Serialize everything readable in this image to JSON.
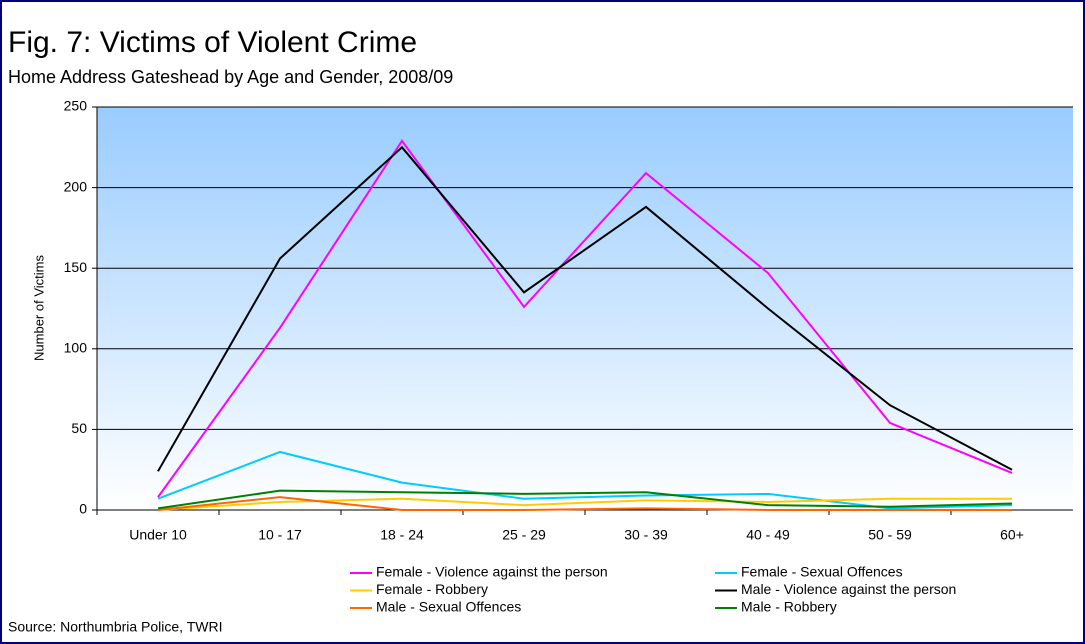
{
  "chart_data": {
    "type": "line",
    "title": "Fig. 7: Victims of Violent Crime",
    "subtitle": "Home Address Gateshead by Age and Gender, 2008/09",
    "y_label": "Number of Victims",
    "source": "Source: Northumbria Police, TWRI",
    "categories": [
      "Under 10",
      "10 - 17",
      "18 - 24",
      "25 - 29",
      "30 - 39",
      "40 - 49",
      "50 - 59",
      "60+"
    ],
    "series": [
      {
        "name": "Female - Violence against the person",
        "color": "#ff00ff",
        "values": [
          8,
          113,
          229,
          126,
          209,
          147,
          54,
          23
        ]
      },
      {
        "name": "Female - Sexual Offences",
        "color": "#00ccff",
        "values": [
          7,
          36,
          17,
          7,
          9,
          10,
          1,
          3
        ]
      },
      {
        "name": "Female - Robbery",
        "color": "#ffcc00",
        "values": [
          0,
          5,
          7,
          3,
          6,
          5,
          7,
          7
        ]
      },
      {
        "name": "Male - Violence against the person",
        "color": "#000000",
        "values": [
          24,
          156,
          225,
          135,
          188,
          125,
          65,
          25
        ]
      },
      {
        "name": "Male - Sexual Offences",
        "color": "#ff6600",
        "values": [
          0,
          8,
          0,
          0,
          1,
          0,
          0,
          0
        ]
      },
      {
        "name": "Male - Robbery",
        "color": "#008000",
        "values": [
          1,
          12,
          11,
          10,
          11,
          3,
          2,
          4
        ]
      }
    ],
    "ylim": [
      0,
      250
    ],
    "yticks": [
      0,
      50,
      100,
      150,
      200,
      250
    ],
    "grid": true
  }
}
